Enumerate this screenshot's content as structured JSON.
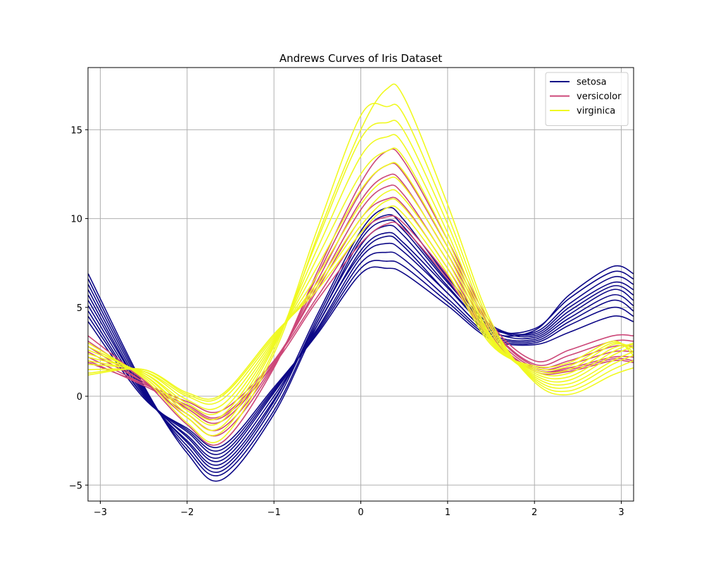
{
  "chart_data": {
    "type": "line",
    "title": "Andrews Curves of Iris Dataset",
    "xlabel": "",
    "ylabel": "",
    "xlim": [
      -3.14159,
      3.14159
    ],
    "ylim": [
      -5.9,
      18.5
    ],
    "grid": true,
    "legend_position": "top-right",
    "x_ticks": [
      {
        "value": -3,
        "label": "−3"
      },
      {
        "value": -2,
        "label": "−2"
      },
      {
        "value": -1,
        "label": "−1"
      },
      {
        "value": 0,
        "label": "0"
      },
      {
        "value": 1,
        "label": "1"
      },
      {
        "value": 2,
        "label": "2"
      },
      {
        "value": 3,
        "label": "3"
      }
    ],
    "y_ticks": [
      {
        "value": -5,
        "label": "−5"
      },
      {
        "value": 0,
        "label": "0"
      },
      {
        "value": 5,
        "label": "5"
      },
      {
        "value": 10,
        "label": "10"
      },
      {
        "value": 15,
        "label": "15"
      }
    ],
    "curve_x": [
      -3.14,
      -2.5,
      -2.0,
      -1.6,
      -1.0,
      -0.5,
      0.0,
      0.3,
      0.5,
      1.0,
      1.5,
      2.0,
      2.4,
      2.9,
      3.14
    ],
    "series": [
      {
        "name": "setosa",
        "color": "#0d0887",
        "curves": [
          [
            6.9,
            0.6,
            -3.2,
            -4.7,
            -1.0,
            4.0,
            8.0,
            9.0,
            8.4,
            5.8,
            3.6,
            3.7,
            5.7,
            7.3,
            6.9
          ],
          [
            6.6,
            0.5,
            -3.0,
            -4.4,
            -0.8,
            4.2,
            8.5,
            9.6,
            9.0,
            6.2,
            3.8,
            3.8,
            5.5,
            7.0,
            6.6
          ],
          [
            6.3,
            0.4,
            -2.8,
            -4.2,
            -0.5,
            4.4,
            9.0,
            10.2,
            9.5,
            6.5,
            3.9,
            3.6,
            5.2,
            6.7,
            6.3
          ],
          [
            6.0,
            0.3,
            -2.6,
            -4.0,
            -0.3,
            4.6,
            9.3,
            10.6,
            9.9,
            6.7,
            4.0,
            3.5,
            5.0,
            6.4,
            6.0
          ],
          [
            5.7,
            0.2,
            -2.5,
            -3.8,
            -0.2,
            4.2,
            8.8,
            9.9,
            9.3,
            6.4,
            3.9,
            3.4,
            4.8,
            6.2,
            5.7
          ],
          [
            5.4,
            0.2,
            -2.3,
            -3.6,
            0.0,
            4.0,
            8.2,
            9.2,
            8.6,
            6.1,
            3.7,
            3.3,
            4.6,
            6.0,
            5.4
          ],
          [
            5.1,
            0.1,
            -2.2,
            -3.4,
            0.2,
            3.8,
            7.8,
            8.6,
            8.1,
            5.8,
            3.5,
            3.2,
            4.4,
            5.7,
            5.1
          ],
          [
            4.8,
            0.0,
            -2.0,
            -3.2,
            0.3,
            3.7,
            7.5,
            8.1,
            7.7,
            5.5,
            3.4,
            3.1,
            4.2,
            5.4,
            4.8
          ],
          [
            4.5,
            0.0,
            -1.9,
            -3.0,
            0.4,
            3.6,
            7.2,
            7.6,
            7.3,
            5.3,
            3.3,
            3.0,
            4.0,
            5.0,
            4.5
          ],
          [
            4.2,
            -0.1,
            -1.8,
            -2.8,
            0.5,
            3.5,
            6.9,
            7.2,
            6.9,
            5.1,
            3.2,
            2.9,
            3.6,
            4.5,
            4.2
          ]
        ]
      },
      {
        "name": "versicolor",
        "color": "#cc4778",
        "curves": [
          [
            3.4,
            0.9,
            -1.6,
            -2.6,
            1.6,
            7.0,
            12.0,
            13.8,
            13.2,
            8.8,
            4.1,
            2.0,
            2.6,
            3.4,
            3.4
          ],
          [
            3.1,
            0.9,
            -1.2,
            -2.1,
            1.7,
            6.8,
            11.5,
            13.0,
            12.5,
            8.4,
            3.9,
            1.8,
            2.3,
            3.1,
            3.1
          ],
          [
            2.8,
            0.8,
            -1.0,
            -1.8,
            1.8,
            6.5,
            11.0,
            12.4,
            11.9,
            8.0,
            3.8,
            1.7,
            2.0,
            2.8,
            2.8
          ],
          [
            2.5,
            0.8,
            -0.7,
            -1.4,
            1.9,
            6.2,
            10.5,
            11.8,
            11.3,
            7.6,
            3.6,
            1.6,
            1.8,
            2.5,
            2.5
          ],
          [
            2.2,
            0.7,
            -0.5,
            -1.1,
            2.0,
            6.0,
            10.0,
            11.1,
            10.7,
            7.2,
            3.4,
            1.5,
            1.6,
            2.2,
            2.2
          ],
          [
            1.9,
            0.7,
            -0.3,
            -0.8,
            2.0,
            5.6,
            9.2,
            10.1,
            9.7,
            6.8,
            3.3,
            1.4,
            1.4,
            2.0,
            1.9
          ],
          [
            2.0,
            0.6,
            -0.6,
            -1.2,
            1.8,
            5.4,
            8.6,
            9.7,
            9.4,
            6.6,
            3.2,
            1.5,
            1.5,
            2.1,
            2.0
          ]
        ]
      },
      {
        "name": "virginica",
        "color": "#f0f921",
        "curves": [
          [
            3.0,
            1.0,
            -1.5,
            -2.4,
            2.4,
            9.0,
            15.0,
            17.3,
            16.8,
            10.8,
            4.2,
            0.8,
            0.1,
            1.2,
            1.6
          ],
          [
            2.8,
            1.1,
            -1.2,
            -2.0,
            2.6,
            9.4,
            15.8,
            16.3,
            15.8,
            10.2,
            4.0,
            0.9,
            0.3,
            1.5,
            2.0
          ],
          [
            2.6,
            1.2,
            -1.0,
            -1.7,
            2.8,
            8.8,
            14.5,
            15.4,
            14.9,
            9.7,
            3.8,
            1.0,
            0.5,
            1.8,
            2.3
          ],
          [
            2.4,
            1.2,
            -0.8,
            -1.4,
            2.9,
            8.3,
            13.5,
            14.6,
            14.1,
            9.2,
            3.6,
            1.1,
            0.7,
            2.0,
            2.5
          ],
          [
            2.2,
            1.3,
            -0.6,
            -1.1,
            3.0,
            7.8,
            12.5,
            13.8,
            13.4,
            8.8,
            3.4,
            1.2,
            0.9,
            2.3,
            2.8
          ],
          [
            2.0,
            1.3,
            -0.4,
            -0.8,
            3.1,
            7.3,
            11.6,
            13.0,
            12.6,
            8.4,
            3.3,
            1.3,
            1.1,
            2.5,
            3.0
          ],
          [
            1.8,
            1.4,
            -0.2,
            -0.5,
            3.2,
            6.8,
            10.8,
            12.2,
            11.8,
            8.0,
            3.2,
            1.4,
            1.3,
            2.7,
            2.9
          ],
          [
            1.5,
            1.4,
            0.0,
            -0.2,
            3.3,
            6.4,
            10.0,
            11.5,
            11.1,
            7.6,
            3.1,
            1.5,
            1.5,
            2.9,
            2.7
          ],
          [
            1.3,
            1.5,
            0.1,
            0.0,
            3.4,
            6.2,
            9.6,
            11.0,
            10.6,
            7.2,
            3.0,
            1.6,
            1.7,
            3.0,
            2.5
          ],
          [
            1.2,
            1.5,
            0.2,
            0.1,
            3.5,
            6.0,
            9.2,
            10.6,
            10.2,
            6.9,
            2.9,
            1.7,
            1.9,
            3.1,
            2.3
          ]
        ]
      }
    ]
  }
}
